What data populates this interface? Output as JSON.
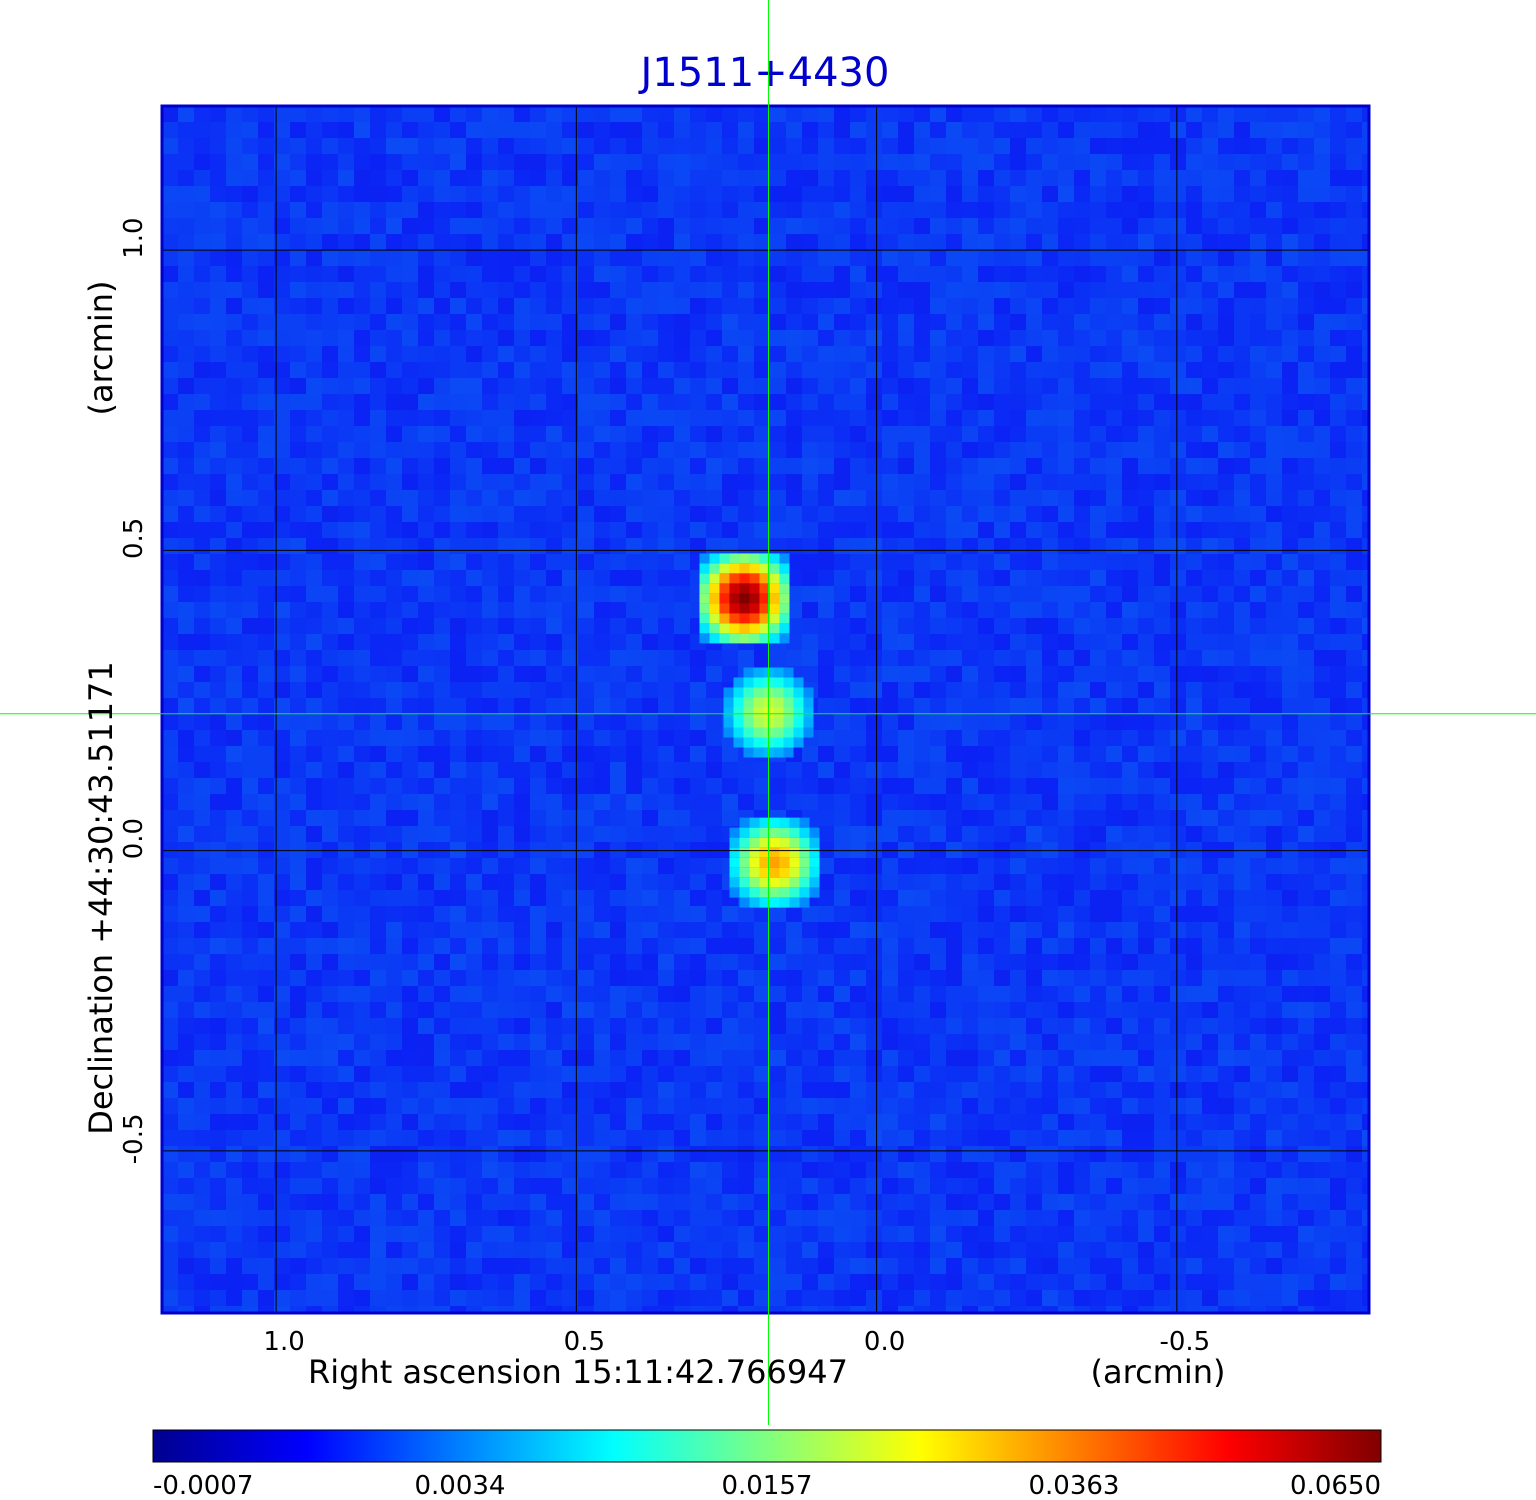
{
  "chart_data": {
    "type": "heatmap",
    "title": "J1511+4430",
    "xlabel": "Right ascension  15:11:42.766947",
    "xunit": "(arcmin)",
    "ylabel": "Declination  +44:30:43.51171",
    "yunit": "(arcmin)",
    "x_ticks": [
      "1.0",
      "0.5",
      "0.0",
      "-0.5"
    ],
    "x_tick_values": [
      1.0,
      0.5,
      0.0,
      -0.5
    ],
    "y_ticks": [
      "1.0",
      "0.5",
      "0.0",
      "-0.5"
    ],
    "y_tick_values": [
      1.0,
      0.5,
      0.0,
      -0.5
    ],
    "xlim": [
      1.19,
      -0.82
    ],
    "ylim": [
      -0.77,
      1.24
    ],
    "x_reversed": true,
    "grid": true,
    "crosshair": {
      "x": 0.18,
      "y": 0.228,
      "color": "#00ff00"
    },
    "colormap": "jet",
    "colorbar": {
      "placement": "bottom",
      "tick_labels": [
        "-0.0007",
        "0.0034",
        "0.0157",
        "0.0363",
        "0.0650"
      ],
      "min": -0.0007,
      "max": 0.065
    },
    "background_level": 0.0012,
    "sources": [
      {
        "x": 0.22,
        "y": 0.42,
        "peak": 0.065
      },
      {
        "x": 0.18,
        "y": 0.23,
        "peak": 0.022
      },
      {
        "x": 0.17,
        "y": -0.02,
        "peak": 0.033
      }
    ],
    "colors": {
      "frame": "#0000cc",
      "title": "#0000cc",
      "grid": "#000000",
      "crosshair": "#00ff00"
    }
  }
}
